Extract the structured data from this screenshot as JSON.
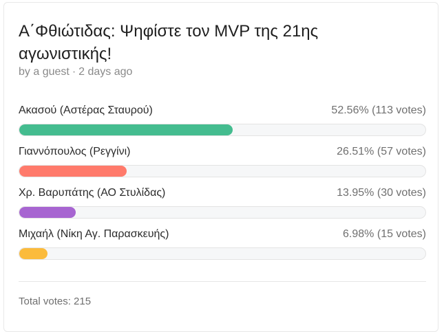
{
  "poll": {
    "title": "Α΄Φθιώτιδας: Ψηφίστε τον MVP της 21ης αγωνιστικής!",
    "author": "by a guest",
    "age": "2 days ago",
    "options": [
      {
        "label": "Ακασού (Αστέρας Σταυρού)",
        "percent_text": "52.56%",
        "votes_text": "(113 votes)",
        "fraction": 0.5256,
        "color": "#44bc8f"
      },
      {
        "label": "Γιαννόπουλος (Ρεγγίνι)",
        "percent_text": "26.51%",
        "votes_text": "(57 votes)",
        "fraction": 0.2651,
        "color": "#ff7a6b"
      },
      {
        "label": "Χρ. Βαρυπάτης (ΑΟ Στυλίδας)",
        "percent_text": "13.95%",
        "votes_text": "(30 votes)",
        "fraction": 0.1395,
        "color": "#a765d1"
      },
      {
        "label": "Μιχαήλ (Νίκη Αγ. Παρασκευής)",
        "percent_text": "6.98%",
        "votes_text": "(15 votes)",
        "fraction": 0.0698,
        "color": "#fbbb3c"
      }
    ],
    "total_votes": "Total votes: 215"
  }
}
